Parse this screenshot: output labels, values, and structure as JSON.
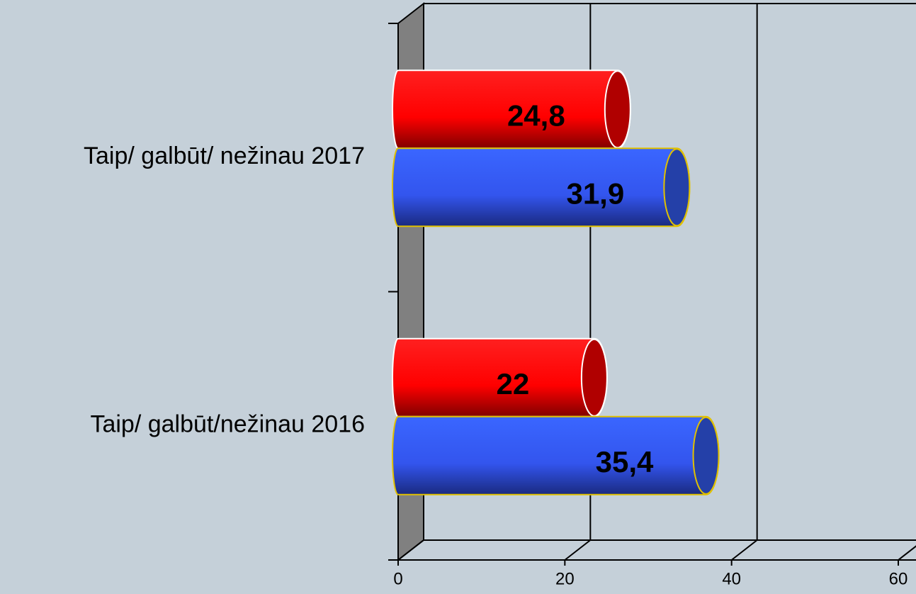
{
  "chart_data": {
    "type": "bar3d",
    "orientation": "horizontal",
    "categories": [
      "Taip/ galbūt/ nežinau 2017",
      "Taip/ galbūt/nežinau 2016"
    ],
    "series": [
      {
        "color": "#ff0000",
        "values": [
          24.8,
          22
        ],
        "value_labels": [
          "24,8",
          "22"
        ]
      },
      {
        "color": "#3050f0",
        "values": [
          31.9,
          35.4
        ],
        "value_labels": [
          "31,9",
          "35,4"
        ]
      }
    ],
    "xlim": [
      0,
      60
    ],
    "xticks": [
      0,
      20,
      40,
      60
    ],
    "grid": true
  }
}
